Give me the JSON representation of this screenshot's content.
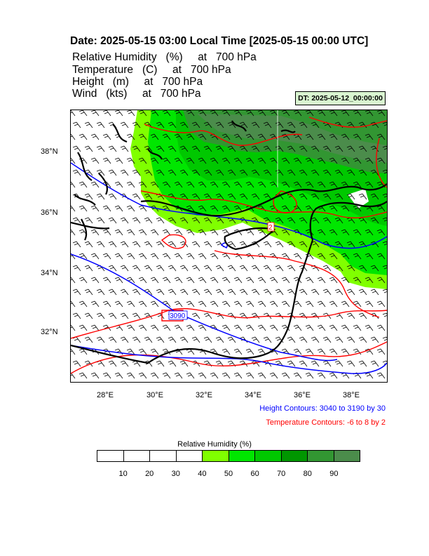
{
  "header": {
    "date_line": "Date: 2025-05-15  03:00 Local Time [2025-05-15  00:00 UTC]",
    "fields": [
      {
        "name": "Relative Humidity",
        "unit": "(%)",
        "at": "at",
        "level": "700 hPa"
      },
      {
        "name": "Temperature",
        "unit": "(C)",
        "at": "at",
        "level": "700 hPa"
      },
      {
        "name": "Height",
        "unit": "(m)",
        "at": "at",
        "level": "700 hPa"
      },
      {
        "name": "Wind",
        "unit": "(kts)",
        "at": "at",
        "level": "700 hPa"
      }
    ],
    "dt_badge": "DT: 2025-05-12_00:00:00"
  },
  "map": {
    "lat_labels": [
      "38°N",
      "36°N",
      "34°N",
      "32°N"
    ],
    "lon_labels": [
      "28°E",
      "30°E",
      "32°E",
      "34°E",
      "36°E",
      "38°E"
    ],
    "contour_labels": {
      "height": "3090",
      "temperature": "2"
    },
    "colors": {
      "height_contour": "#0000ff",
      "temperature_contour": "#ff0000",
      "coast": "#000000",
      "barb": "#000000"
    }
  },
  "notes": {
    "height": "Height Contours: 3040 to 3190 by 30",
    "temperature": "Temperature Contours: -6 to 8 by 2"
  },
  "colorbar": {
    "title": "Relative Humidity  (%)",
    "labels": [
      "10",
      "20",
      "30",
      "40",
      "50",
      "60",
      "70",
      "80",
      "90"
    ],
    "colors": [
      "#ffffff",
      "#ffffff",
      "#ffffff",
      "#ffffff",
      "#80ff00",
      "#00e600",
      "#00c800",
      "#009600",
      "#329632",
      "#4b8c4b"
    ]
  }
}
